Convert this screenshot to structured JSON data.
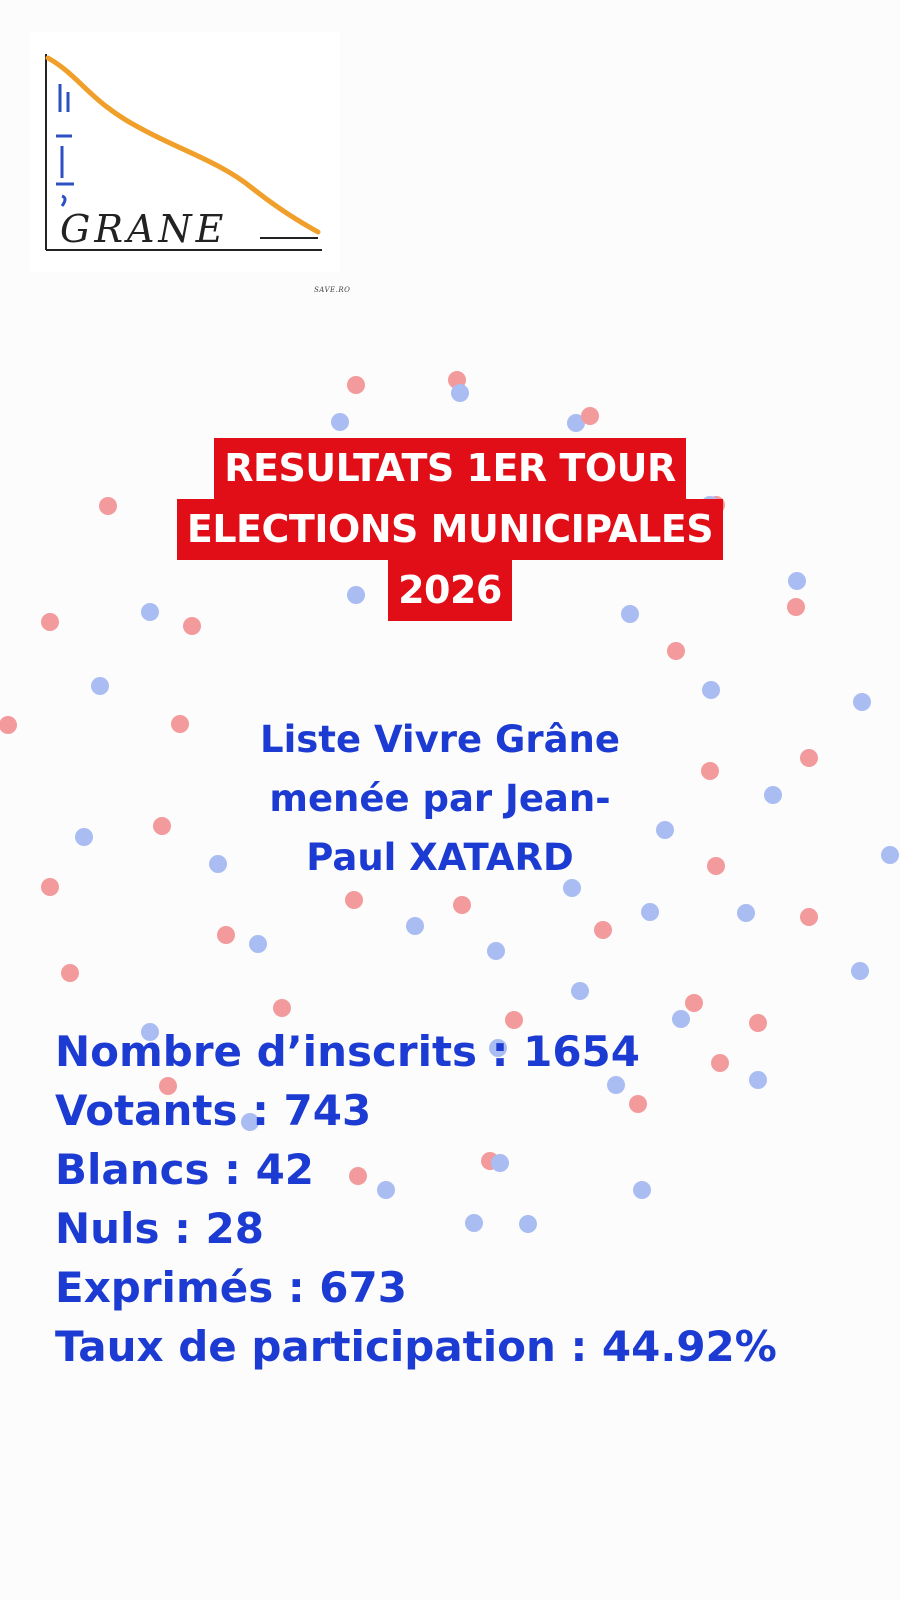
{
  "logo": {
    "text": "GRANE",
    "sub": "SAVE.RO"
  },
  "title": {
    "line1": "RESULTATS 1ER TOUR",
    "line2": "ELECTIONS MUNICIPALES",
    "line3": "2026"
  },
  "list": {
    "line1": "Liste Vivre Grâne",
    "line2": "menée par Jean-",
    "line3": "Paul XATARD"
  },
  "stats": {
    "inscrits": "Nombre d’inscrits : 1654",
    "votants": "Votants : 743",
    "blancs": "Blancs : 42",
    "nuls": "Nuls : 28",
    "exprimes": "Exprimés : 673",
    "participation": "Taux de participation : 44.92%"
  },
  "colors": {
    "banner_red": "#e10e17",
    "text_blue": "#1c3bd2",
    "dot_red": "#f29a9c",
    "dot_blue": "#a9bdf3",
    "logo_orange": "#f0a02a",
    "logo_blue": "#2d4fc4"
  },
  "decoration": {
    "dot_colors": [
      "red",
      "blue"
    ]
  }
}
